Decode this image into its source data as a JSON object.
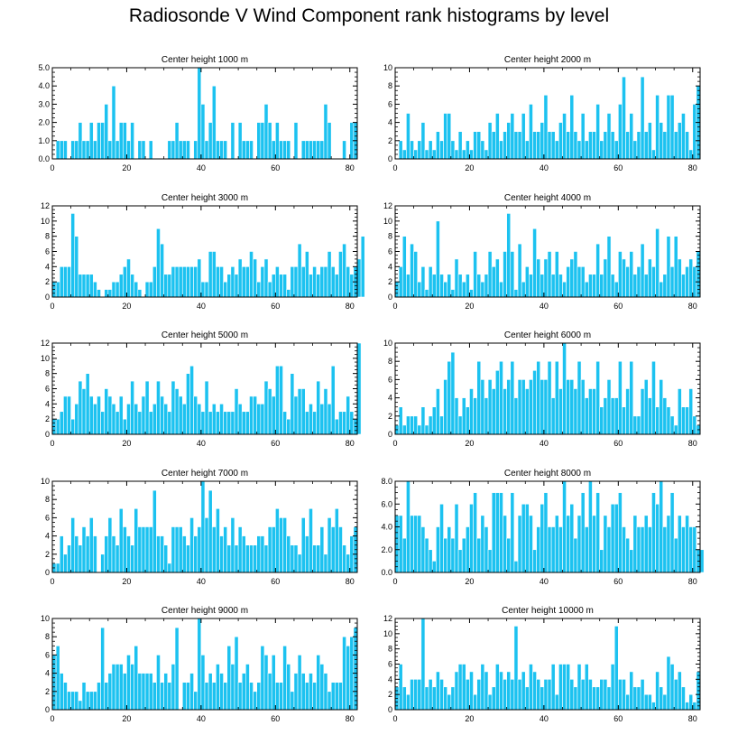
{
  "title": "Radiosonde V Wind Component rank histograms by level",
  "colors": {
    "bar": "#1cc2f0",
    "bar_edge": "#ffffff",
    "axis": "#000000"
  },
  "chart_data": [
    {
      "type": "bar",
      "title": "Center height 1000 m",
      "xlim": [
        0,
        82
      ],
      "ylim": [
        0,
        5
      ],
      "yticks": [
        "0.0",
        "1.0",
        "2.0",
        "3.0",
        "4.0",
        "5.0"
      ],
      "xticks": [
        0,
        20,
        40,
        60,
        80
      ],
      "values": [
        0,
        1,
        1,
        1,
        0,
        1,
        1,
        2,
        1,
        1,
        2,
        1,
        2,
        2,
        3,
        1,
        4,
        1,
        2,
        2,
        1,
        2,
        0,
        1,
        1,
        0,
        1,
        0,
        0,
        0,
        0,
        1,
        1,
        2,
        1,
        1,
        1,
        0,
        1,
        5,
        3,
        1,
        2,
        4,
        1,
        1,
        1,
        0,
        2,
        0,
        2,
        1,
        1,
        1,
        0,
        2,
        2,
        3,
        2,
        1,
        2,
        1,
        1,
        1,
        0,
        2,
        0,
        1,
        1,
        1,
        1,
        1,
        1,
        3,
        2,
        0,
        0,
        0,
        1,
        0,
        2,
        2
      ]
    },
    {
      "type": "bar",
      "title": "Center height 2000 m",
      "xlim": [
        0,
        82
      ],
      "ylim": [
        0,
        10
      ],
      "yticks": [
        "0",
        "2",
        "4",
        "6",
        "8",
        "10"
      ],
      "xticks": [
        0,
        20,
        40,
        60,
        80
      ],
      "values": [
        0,
        2,
        1,
        5,
        2,
        1,
        2,
        4,
        1,
        2,
        1,
        3,
        2,
        5,
        5,
        2,
        1,
        3,
        1,
        2,
        1,
        3,
        3,
        2,
        1,
        4,
        3,
        5,
        2,
        3,
        4,
        5,
        3,
        3,
        5,
        2,
        6,
        3,
        3,
        4,
        7,
        3,
        3,
        2,
        4,
        5,
        3,
        7,
        3,
        2,
        5,
        2,
        3,
        3,
        6,
        2,
        3,
        5,
        3,
        2,
        6,
        9,
        3,
        5,
        2,
        3,
        9,
        3,
        4,
        1,
        7,
        4,
        3,
        7,
        7,
        3,
        4,
        5,
        3,
        1,
        6,
        8
      ]
    },
    {
      "type": "bar",
      "title": "Center height 3000 m",
      "xlim": [
        0,
        82
      ],
      "ylim": [
        0,
        12
      ],
      "yticks": [
        "0",
        "2",
        "4",
        "6",
        "8",
        "10",
        "12"
      ],
      "xticks": [
        0,
        20,
        40,
        60,
        80
      ],
      "values": [
        2,
        2,
        4,
        4,
        4,
        11,
        8,
        3,
        3,
        3,
        3,
        2,
        1,
        0,
        1,
        1,
        2,
        2,
        3,
        4,
        5,
        3,
        2,
        1,
        0,
        2,
        2,
        4,
        9,
        7,
        3,
        3,
        4,
        4,
        4,
        4,
        4,
        4,
        4,
        5,
        2,
        2,
        6,
        6,
        4,
        4,
        2,
        3,
        4,
        3,
        5,
        4,
        4,
        6,
        5,
        2,
        4,
        5,
        2,
        3,
        4,
        3,
        3,
        1,
        4,
        4,
        7,
        4,
        6,
        3,
        4,
        3,
        4,
        4,
        6,
        4,
        3,
        6,
        7,
        4,
        3,
        4,
        5,
        8
      ]
    },
    {
      "type": "bar",
      "title": "Center height 4000 m",
      "xlim": [
        0,
        82
      ],
      "ylim": [
        0,
        12
      ],
      "yticks": [
        "0",
        "2",
        "4",
        "6",
        "8",
        "10",
        "12"
      ],
      "xticks": [
        0,
        20,
        40,
        60,
        80
      ],
      "values": [
        2,
        4,
        8,
        3,
        7,
        6,
        2,
        4,
        1,
        4,
        3,
        10,
        3,
        2,
        3,
        1,
        5,
        3,
        2,
        3,
        1,
        6,
        3,
        2,
        3,
        6,
        4,
        5,
        2,
        6,
        11,
        6,
        1,
        7,
        2,
        4,
        3,
        9,
        5,
        3,
        5,
        6,
        3,
        6,
        3,
        2,
        4,
        5,
        6,
        4,
        4,
        2,
        3,
        3,
        7,
        3,
        5,
        8,
        3,
        2,
        6,
        5,
        4,
        6,
        3,
        4,
        7,
        3,
        5,
        4,
        9,
        2,
        3,
        8,
        4,
        8,
        5,
        3,
        4,
        5,
        4,
        6
      ]
    },
    {
      "type": "bar",
      "title": "Center height 5000 m",
      "xlim": [
        0,
        82
      ],
      "ylim": [
        0,
        12
      ],
      "yticks": [
        "0",
        "2",
        "4",
        "6",
        "8",
        "10",
        "12"
      ],
      "xticks": [
        0,
        20,
        40,
        60,
        80
      ],
      "values": [
        2,
        2,
        3,
        5,
        5,
        2,
        4,
        7,
        6,
        8,
        5,
        4,
        5,
        3,
        6,
        5,
        4,
        3,
        5,
        2,
        4,
        7,
        4,
        3,
        5,
        7,
        3,
        4,
        7,
        5,
        4,
        3,
        7,
        6,
        5,
        4,
        8,
        9,
        5,
        4,
        3,
        7,
        3,
        4,
        3,
        4,
        3,
        3,
        3,
        6,
        4,
        3,
        3,
        5,
        5,
        4,
        4,
        7,
        6,
        5,
        9,
        9,
        3,
        2,
        8,
        5,
        6,
        6,
        3,
        4,
        3,
        7,
        4,
        6,
        4,
        9,
        2,
        3,
        3,
        5,
        3,
        2,
        12
      ]
    },
    {
      "type": "bar",
      "title": "Center height 6000 m",
      "xlim": [
        0,
        82
      ],
      "ylim": [
        0,
        10
      ],
      "yticks": [
        "0",
        "2",
        "4",
        "6",
        "8",
        "10"
      ],
      "xticks": [
        0,
        20,
        40,
        60,
        80
      ],
      "values": [
        1,
        3,
        1,
        2,
        2,
        2,
        1,
        3,
        1,
        2,
        3,
        5,
        2,
        6,
        8,
        9,
        4,
        2,
        4,
        3,
        5,
        4,
        8,
        6,
        4,
        6,
        5,
        7,
        8,
        5,
        6,
        8,
        4,
        6,
        6,
        5,
        6,
        7,
        8,
        6,
        6,
        8,
        4,
        8,
        5,
        10,
        6,
        6,
        5,
        8,
        6,
        4,
        5,
        5,
        8,
        3,
        4,
        6,
        4,
        4,
        8,
        3,
        5,
        8,
        2,
        2,
        5,
        6,
        4,
        8,
        3,
        6,
        4,
        3,
        2,
        1,
        5,
        3,
        3,
        5,
        2,
        1
      ]
    },
    {
      "type": "bar",
      "title": "Center height 7000 m",
      "xlim": [
        0,
        82
      ],
      "ylim": [
        0,
        10
      ],
      "yticks": [
        "0",
        "2",
        "4",
        "6",
        "8",
        "10"
      ],
      "xticks": [
        0,
        20,
        40,
        60,
        80
      ],
      "values": [
        1,
        1,
        4,
        2,
        3,
        6,
        4,
        3,
        5,
        4,
        6,
        4,
        0,
        2,
        4,
        6,
        4,
        3,
        7,
        5,
        4,
        3,
        7,
        5,
        5,
        5,
        5,
        9,
        4,
        4,
        3,
        1,
        5,
        5,
        5,
        4,
        3,
        6,
        4,
        5,
        10,
        6,
        9,
        5,
        7,
        4,
        5,
        3,
        6,
        3,
        5,
        4,
        3,
        3,
        3,
        4,
        4,
        3,
        5,
        5,
        7,
        6,
        6,
        4,
        3,
        3,
        2,
        6,
        4,
        7,
        3,
        3,
        5,
        2,
        6,
        5,
        7,
        5,
        3,
        2,
        4,
        5
      ]
    },
    {
      "type": "bar",
      "title": "Center height 8000 m",
      "xlim": [
        0,
        82
      ],
      "ylim": [
        0,
        8
      ],
      "yticks": [
        "0.0",
        "2.0",
        "4.0",
        "6.0",
        "8.0"
      ],
      "xticks": [
        0,
        20,
        40,
        60,
        80
      ],
      "values": [
        5,
        5,
        3,
        8,
        5,
        5,
        5,
        4,
        3,
        2,
        1,
        4,
        6,
        3,
        4,
        3,
        6,
        2,
        3,
        4,
        6,
        7,
        3,
        5,
        4,
        2,
        7,
        7,
        7,
        5,
        3,
        7,
        1,
        5,
        6,
        6,
        5,
        2,
        4,
        6,
        7,
        4,
        4,
        5,
        4,
        8,
        5,
        6,
        3,
        5,
        7,
        4,
        8,
        5,
        7,
        2,
        5,
        4,
        6,
        6,
        7,
        4,
        3,
        2,
        5,
        4,
        4,
        5,
        4,
        7,
        6,
        8,
        4,
        5,
        7,
        3,
        5,
        4,
        5,
        4,
        4,
        2,
        2
      ]
    },
    {
      "type": "bar",
      "title": "Center height 9000 m",
      "xlim": [
        0,
        82
      ],
      "ylim": [
        0,
        10
      ],
      "yticks": [
        "0",
        "2",
        "4",
        "6",
        "8",
        "10"
      ],
      "xticks": [
        0,
        20,
        40,
        60,
        80
      ],
      "values": [
        6,
        7,
        4,
        3,
        2,
        2,
        2,
        1,
        3,
        2,
        2,
        2,
        3,
        9,
        3,
        4,
        5,
        5,
        5,
        4,
        6,
        5,
        7,
        4,
        4,
        4,
        4,
        3,
        6,
        3,
        4,
        3,
        5,
        9,
        0,
        3,
        3,
        4,
        2,
        10,
        6,
        3,
        4,
        3,
        5,
        4,
        3,
        7,
        5,
        8,
        3,
        4,
        5,
        3,
        2,
        3,
        7,
        6,
        4,
        6,
        3,
        3,
        7,
        5,
        2,
        4,
        6,
        4,
        3,
        4,
        3,
        6,
        5,
        4,
        2,
        3,
        3,
        3,
        8,
        7,
        8,
        9
      ]
    },
    {
      "type": "bar",
      "title": "Center height 10000 m",
      "xlim": [
        0,
        82
      ],
      "ylim": [
        0,
        12
      ],
      "yticks": [
        "0",
        "2",
        "4",
        "6",
        "8",
        "10",
        "12"
      ],
      "xticks": [
        0,
        20,
        40,
        60,
        80
      ],
      "values": [
        3,
        6,
        3,
        2,
        4,
        4,
        4,
        12,
        3,
        4,
        3,
        5,
        4,
        3,
        2,
        3,
        5,
        6,
        6,
        4,
        5,
        2,
        4,
        6,
        5,
        2,
        3,
        6,
        5,
        4,
        5,
        4,
        11,
        4,
        5,
        3,
        6,
        5,
        4,
        3,
        4,
        4,
        6,
        2,
        6,
        6,
        6,
        4,
        3,
        6,
        4,
        6,
        4,
        3,
        3,
        4,
        4,
        3,
        6,
        11,
        4,
        4,
        2,
        5,
        3,
        3,
        4,
        2,
        2,
        1,
        5,
        3,
        2,
        7,
        6,
        4,
        5,
        3,
        1,
        2,
        1,
        5
      ]
    }
  ]
}
